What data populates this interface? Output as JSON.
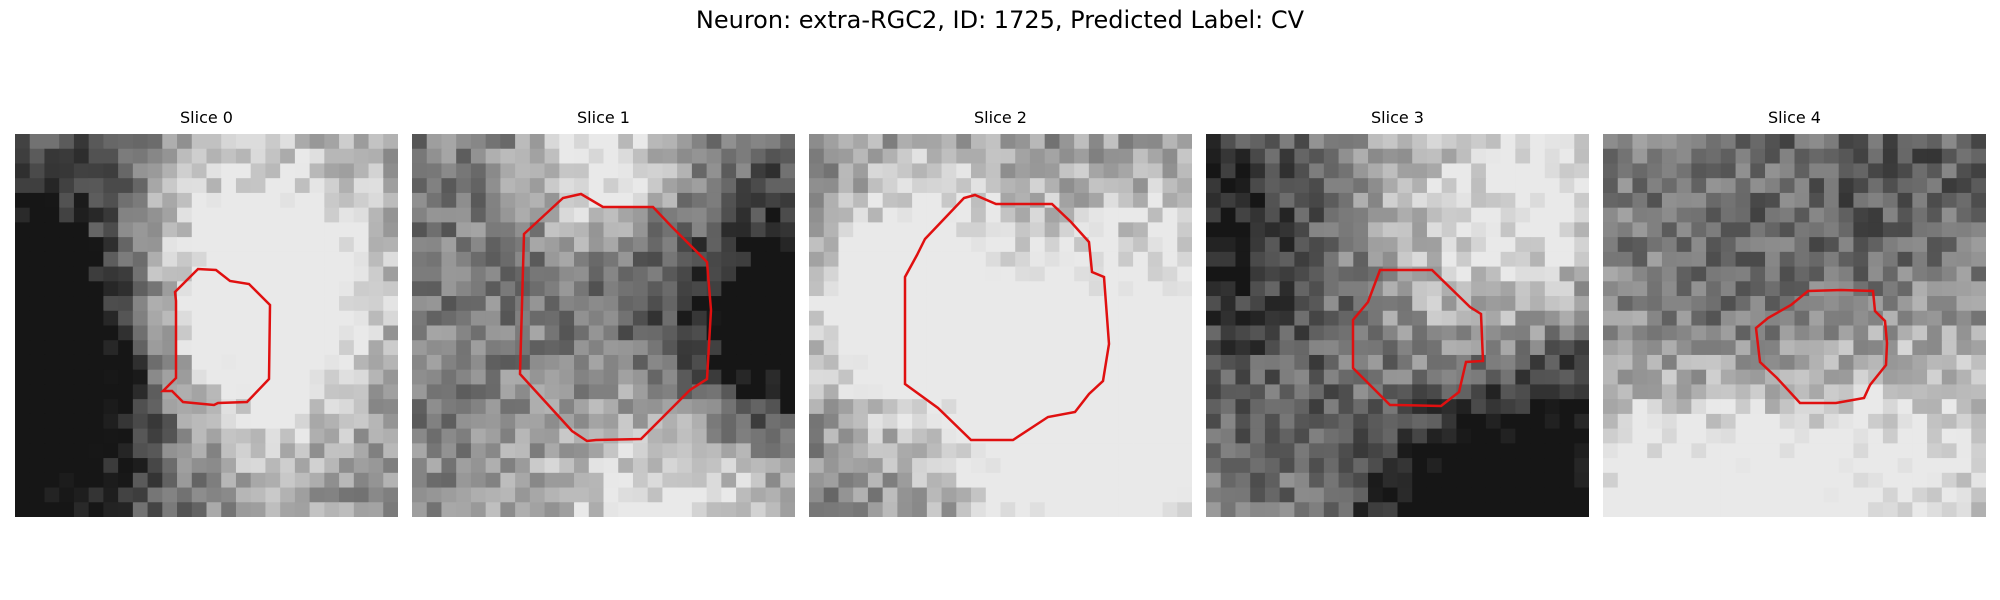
{
  "figure": {
    "title": "Neuron: extra-RGC2, ID: 1725, Predicted Label: CV",
    "image_kind": "grayscale microscopy patches with red polygon outline of neuron",
    "colors": {
      "outline": "#e01010",
      "dark": "#1a1a1a",
      "light": "#e8e8e8",
      "background": "#ffffff"
    }
  },
  "slices": [
    {
      "title": "Slice 0"
    },
    {
      "title": "Slice 1"
    },
    {
      "title": "Slice 2"
    },
    {
      "title": "Slice 3"
    },
    {
      "title": "Slice 4"
    }
  ]
}
